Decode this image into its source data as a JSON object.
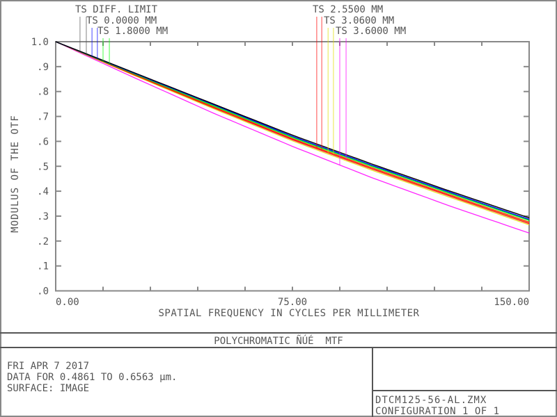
{
  "chart_data": {
    "type": "line",
    "title": "POLYCHROMATIC ÑÚÉ  MTF",
    "xlabel": "SPATIAL FREQUENCY IN CYCLES PER MILLIMETER",
    "ylabel": "MODULUS OF THE OTF",
    "xlim": [
      0,
      150
    ],
    "ylim": [
      0,
      1.0
    ],
    "x_tick_labels": [
      "0.00",
      "75.00",
      "150.00"
    ],
    "y_tick_labels": [
      "1.0",
      ".9",
      ".8",
      ".7",
      ".6",
      ".5",
      ".4",
      ".3",
      ".2",
      ".1",
      ".0"
    ],
    "grid": false,
    "x": [
      0,
      25,
      50,
      75,
      100,
      125,
      150
    ],
    "legend": [
      {
        "label": "TS DIFF. LIMIT",
        "color": "#000000"
      },
      {
        "label": "TS 0.0000 MM",
        "color": "#0000ff"
      },
      {
        "label": "TS 1.8000 MM",
        "color": "#00ff00"
      },
      {
        "label": "TS 2.5500 MM",
        "color": "#ff0000"
      },
      {
        "label": "TS 3.0600 MM",
        "color": "#e0e000"
      },
      {
        "label": "TS 3.6000 MM",
        "color": "#ff00ff"
      }
    ],
    "series": [
      {
        "field": 0,
        "orientation": "T",
        "values": [
          1,
          0.875,
          0.75,
          0.625,
          0.51,
          0.4,
          0.293
        ]
      },
      {
        "field": 0,
        "orientation": "S",
        "values": [
          1,
          0.875,
          0.75,
          0.625,
          0.51,
          0.4,
          0.293
        ]
      },
      {
        "field": 1,
        "orientation": "T",
        "values": [
          1,
          0.873,
          0.747,
          0.62,
          0.505,
          0.395,
          0.287
        ]
      },
      {
        "field": 1,
        "orientation": "S",
        "values": [
          1,
          0.873,
          0.747,
          0.62,
          0.505,
          0.395,
          0.287
        ]
      },
      {
        "field": 2,
        "orientation": "T",
        "values": [
          1,
          0.87,
          0.742,
          0.615,
          0.5,
          0.39,
          0.282
        ]
      },
      {
        "field": 2,
        "orientation": "S",
        "values": [
          1,
          0.871,
          0.744,
          0.617,
          0.502,
          0.392,
          0.284
        ]
      },
      {
        "field": 3,
        "orientation": "T",
        "values": [
          1,
          0.866,
          0.735,
          0.607,
          0.49,
          0.38,
          0.27
        ]
      },
      {
        "field": 3,
        "orientation": "S",
        "values": [
          1,
          0.868,
          0.739,
          0.611,
          0.495,
          0.385,
          0.276
        ]
      },
      {
        "field": 4,
        "orientation": "T",
        "values": [
          1,
          0.864,
          0.731,
          0.602,
          0.485,
          0.375,
          0.265
        ]
      },
      {
        "field": 4,
        "orientation": "S",
        "values": [
          1,
          0.867,
          0.737,
          0.609,
          0.492,
          0.383,
          0.274
        ]
      },
      {
        "field": 5,
        "orientation": "T",
        "values": [
          1,
          0.855,
          0.713,
          0.58,
          0.455,
          0.34,
          0.232
        ]
      },
      {
        "field": 5,
        "orientation": "S",
        "values": [
          1,
          0.866,
          0.735,
          0.606,
          0.49,
          0.38,
          0.27
        ]
      }
    ]
  },
  "info": {
    "date": "FRI APR 7 2017",
    "wavelength": "DATA FOR 0.4861 TO 0.6563 µm.",
    "surface": "SURFACE: IMAGE",
    "filename": "DTCM125-56-AL.ZMX",
    "configuration": "CONFIGURATION 1 OF 1"
  }
}
